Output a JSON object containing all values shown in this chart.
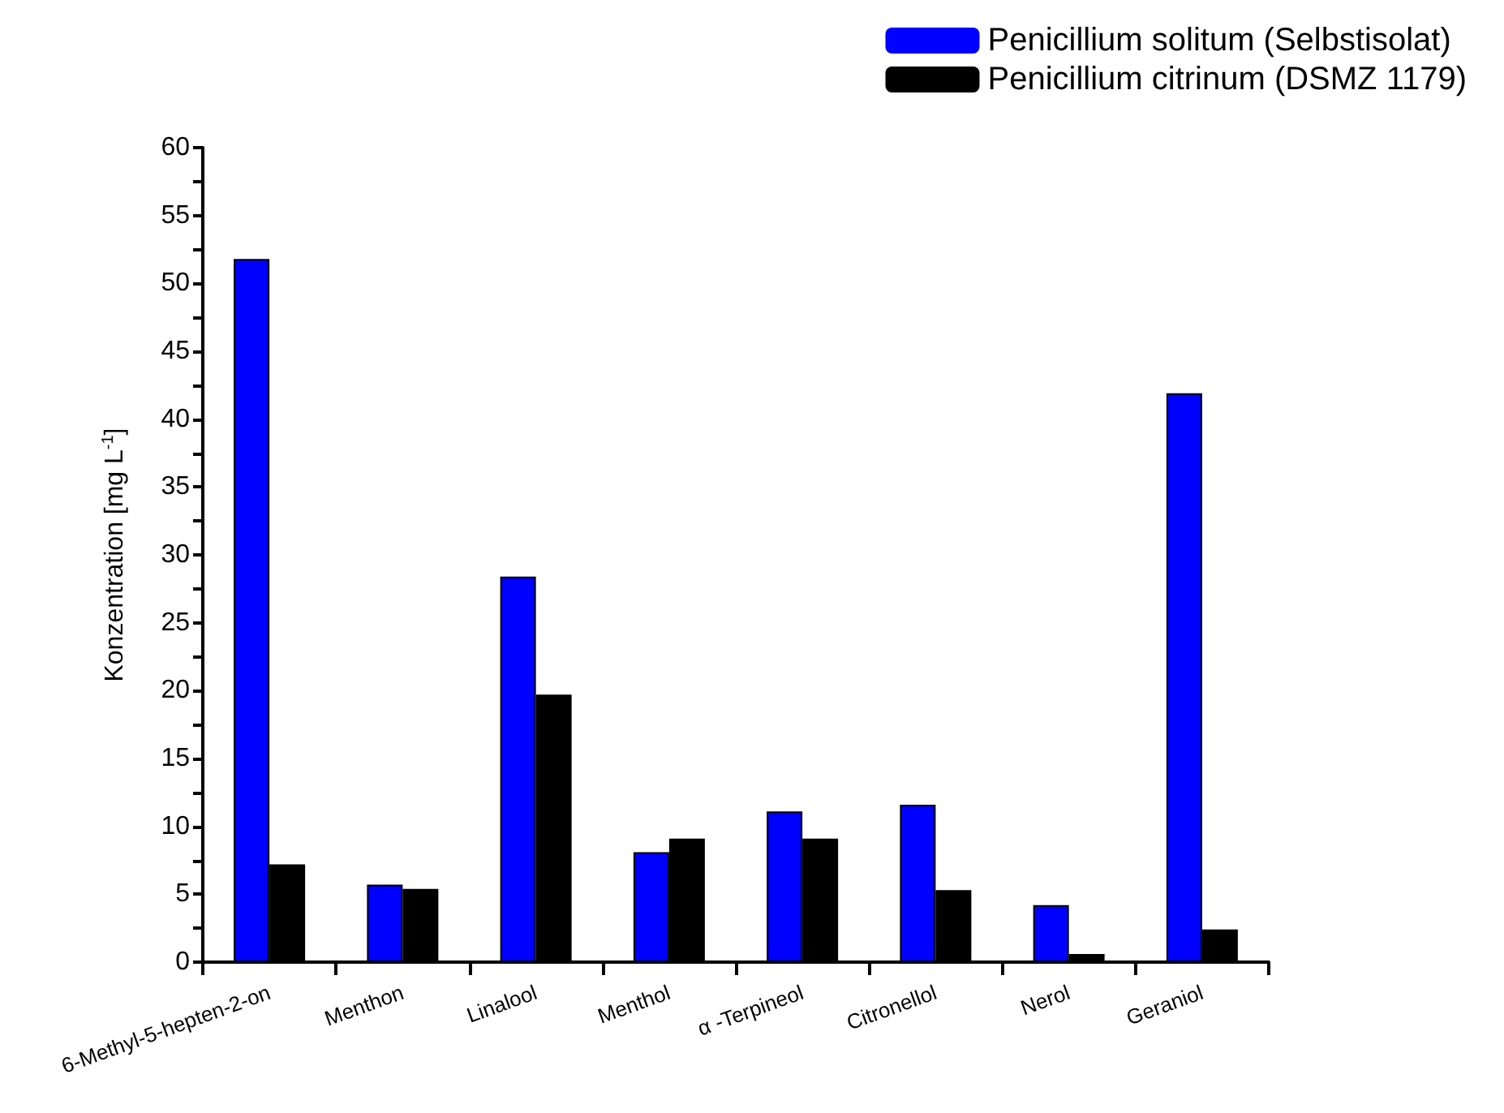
{
  "chart_data": {
    "type": "bar",
    "categories": [
      "6-Methyl-5-hepten-2-on",
      "Menthon",
      "Linalool",
      "Menthol",
      "α -Terpineol",
      "Citronellol",
      "Nerol",
      "Geraniol"
    ],
    "series": [
      {
        "name": "Penicillium solitum (Selbstisolat)",
        "color": "#0000ff",
        "values": [
          51.8,
          5.7,
          28.4,
          8.1,
          11.1,
          11.6,
          4.2,
          41.9
        ]
      },
      {
        "name": "Penicillium citrinum (DSMZ 1179)",
        "color": "#000000",
        "values": [
          7.2,
          5.4,
          19.7,
          9.1,
          9.1,
          5.3,
          0.6,
          2.4
        ]
      }
    ],
    "ylabel": "Konzentration [mg L$^{-1}$]",
    "ylim": [
      0,
      60
    ],
    "yticks": [
      0,
      {
        "value": 2.5,
        "label": null
      },
      5,
      {
        "value": 7.5,
        "label": null
      },
      10,
      {
        "value": 12.5,
        "label": null
      },
      15,
      {
        "value": 17.5,
        "label": null
      },
      20,
      {
        "value": 22.5,
        "label": null
      },
      25,
      {
        "value": 27.5,
        "label": null
      },
      30,
      {
        "value": 32.5,
        "label": null
      },
      35,
      {
        "value": 37.5,
        "label": null
      },
      40,
      {
        "value": 42.5,
        "label": null
      },
      45,
      {
        "value": 47.5,
        "label": null
      },
      50,
      {
        "value": 52.5,
        "label": null
      },
      55,
      {
        "value": 57.5,
        "label": null
      },
      60
    ],
    "grid": false,
    "legend": "top right"
  }
}
